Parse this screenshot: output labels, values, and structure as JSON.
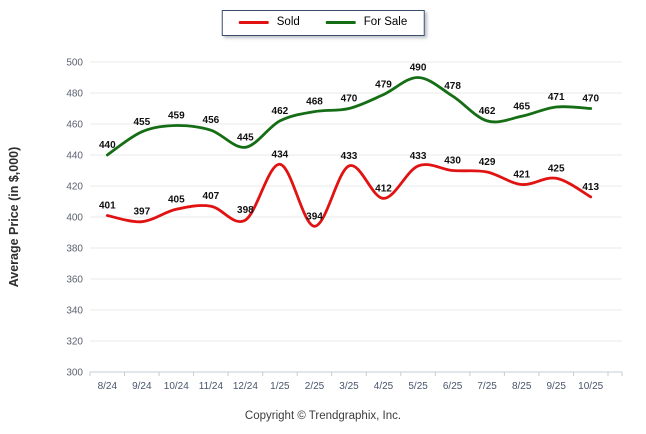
{
  "chart_data": {
    "type": "line",
    "categories": [
      "8/24",
      "9/24",
      "10/24",
      "11/24",
      "12/24",
      "1/25",
      "2/25",
      "3/25",
      "4/25",
      "5/25",
      "6/25",
      "7/25",
      "8/25",
      "9/25",
      "10/25"
    ],
    "series": [
      {
        "name": "Sold",
        "color": "#e01212",
        "values": [
          401,
          397,
          405,
          407,
          398,
          434,
          394,
          433,
          412,
          433,
          430,
          429,
          421,
          425,
          413
        ]
      },
      {
        "name": "For Sale",
        "color": "#156e15",
        "values": [
          440,
          455,
          459,
          456,
          445,
          462,
          468,
          470,
          479,
          490,
          478,
          462,
          465,
          471,
          470
        ]
      }
    ],
    "title": "",
    "xlabel": "",
    "ylabel": "Average Price (in $,000)",
    "ylim": [
      300,
      500
    ],
    "ytick_step": 20,
    "grid": true,
    "data_labels": true,
    "line_style": "smooth",
    "legend_position": "top-center"
  },
  "legend": {
    "sold_label": "Sold",
    "for_sale_label": "For Sale"
  },
  "footer": {
    "copyright": "Copyright © Trendgraphix, Inc."
  },
  "colors": {
    "sold_line": "#e01212",
    "for_sale_line": "#156e15",
    "gridline": "#e9e9e9",
    "axis_line": "#c6ccd4",
    "legend_border": "#3a4f6e"
  }
}
